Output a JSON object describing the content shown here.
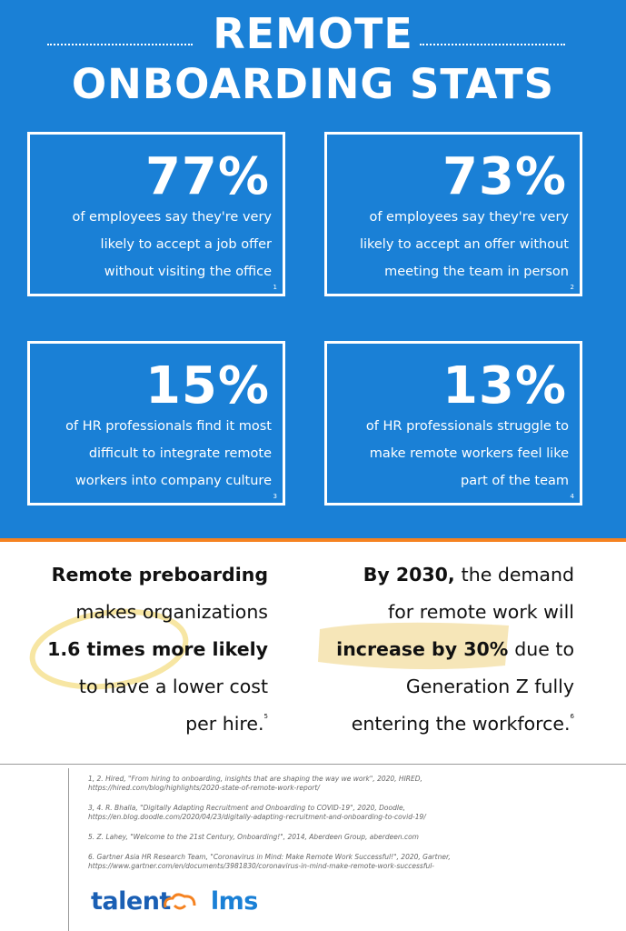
{
  "header": {
    "title_line1": "REMOTE",
    "title_line2": "ONBOARDING STATS"
  },
  "stats": [
    {
      "figure": "77%",
      "lines": [
        "of employees say they're very",
        "likely to accept a job offer",
        "without visiting the office"
      ],
      "note": "1"
    },
    {
      "figure": "73%",
      "lines": [
        "of employees say they're very",
        "likely to accept an offer without",
        "meeting  the team in person"
      ],
      "note": "2"
    },
    {
      "figure": "15%",
      "lines": [
        "of HR professionals find it most",
        "difficult to integrate remote",
        "workers into company culture"
      ],
      "note": "3"
    },
    {
      "figure": "13%",
      "lines": [
        "of HR professionals struggle to",
        "make remote workers feel like",
        "part of the team"
      ],
      "note": "4"
    }
  ],
  "highlights": [
    {
      "lines": [
        [
          {
            "text": "Remote preboarding",
            "bold": true
          }
        ],
        [
          {
            "text": "makes organizations"
          }
        ],
        [
          {
            "text": "1.6 times more likely",
            "bold": true
          }
        ],
        [
          {
            "text": "to have a lower cost"
          }
        ],
        [
          {
            "text": "per hire."
          }
        ]
      ],
      "note": "5"
    },
    {
      "lines": [
        [
          {
            "text": "By 2030,",
            "bold": true
          },
          {
            "text": "the demand"
          }
        ],
        [
          {
            "text": "for remote work will"
          }
        ],
        [
          {
            "text": "increase by 30%",
            "bold": true
          },
          {
            "text": "due to"
          }
        ],
        [
          {
            "text": "Generation Z fully"
          }
        ],
        [
          {
            "text": "entering the workforce."
          }
        ]
      ],
      "note": "6"
    }
  ],
  "references": [
    [
      "1, 2. Hired, \"From hiring to onboarding, insights that are shaping the way we work\", 2020, HIRED,",
      "https://hired.com/blog/highlights/2020-state-of-remote-work-report/"
    ],
    [
      "3, 4. R. Bhalla, \"Digitally Adapting Recruitment and Onboarding to COVID-19\", 2020, Doodle,",
      "https://en.blog.doodle.com/2020/04/23/digitally-adapting-recruitment-and-onboarding-to-covid-19/"
    ],
    [
      "5. Z. Lahey, \"Welcome to the 21st Century, Onboarding!\", 2014, Aberdeen Group, aberdeen.com"
    ],
    [
      "6. Gartner Asia HR Research Team, \"Coronavirus in Mind: Make Remote Work Successful!\", 2020, Gartner,",
      "https://www.gartner.com/en/documents/3981830/coronavirus-in-mind-make-remote-work-successful-"
    ]
  ],
  "logo": {
    "left": "talent",
    "right": "lms"
  }
}
